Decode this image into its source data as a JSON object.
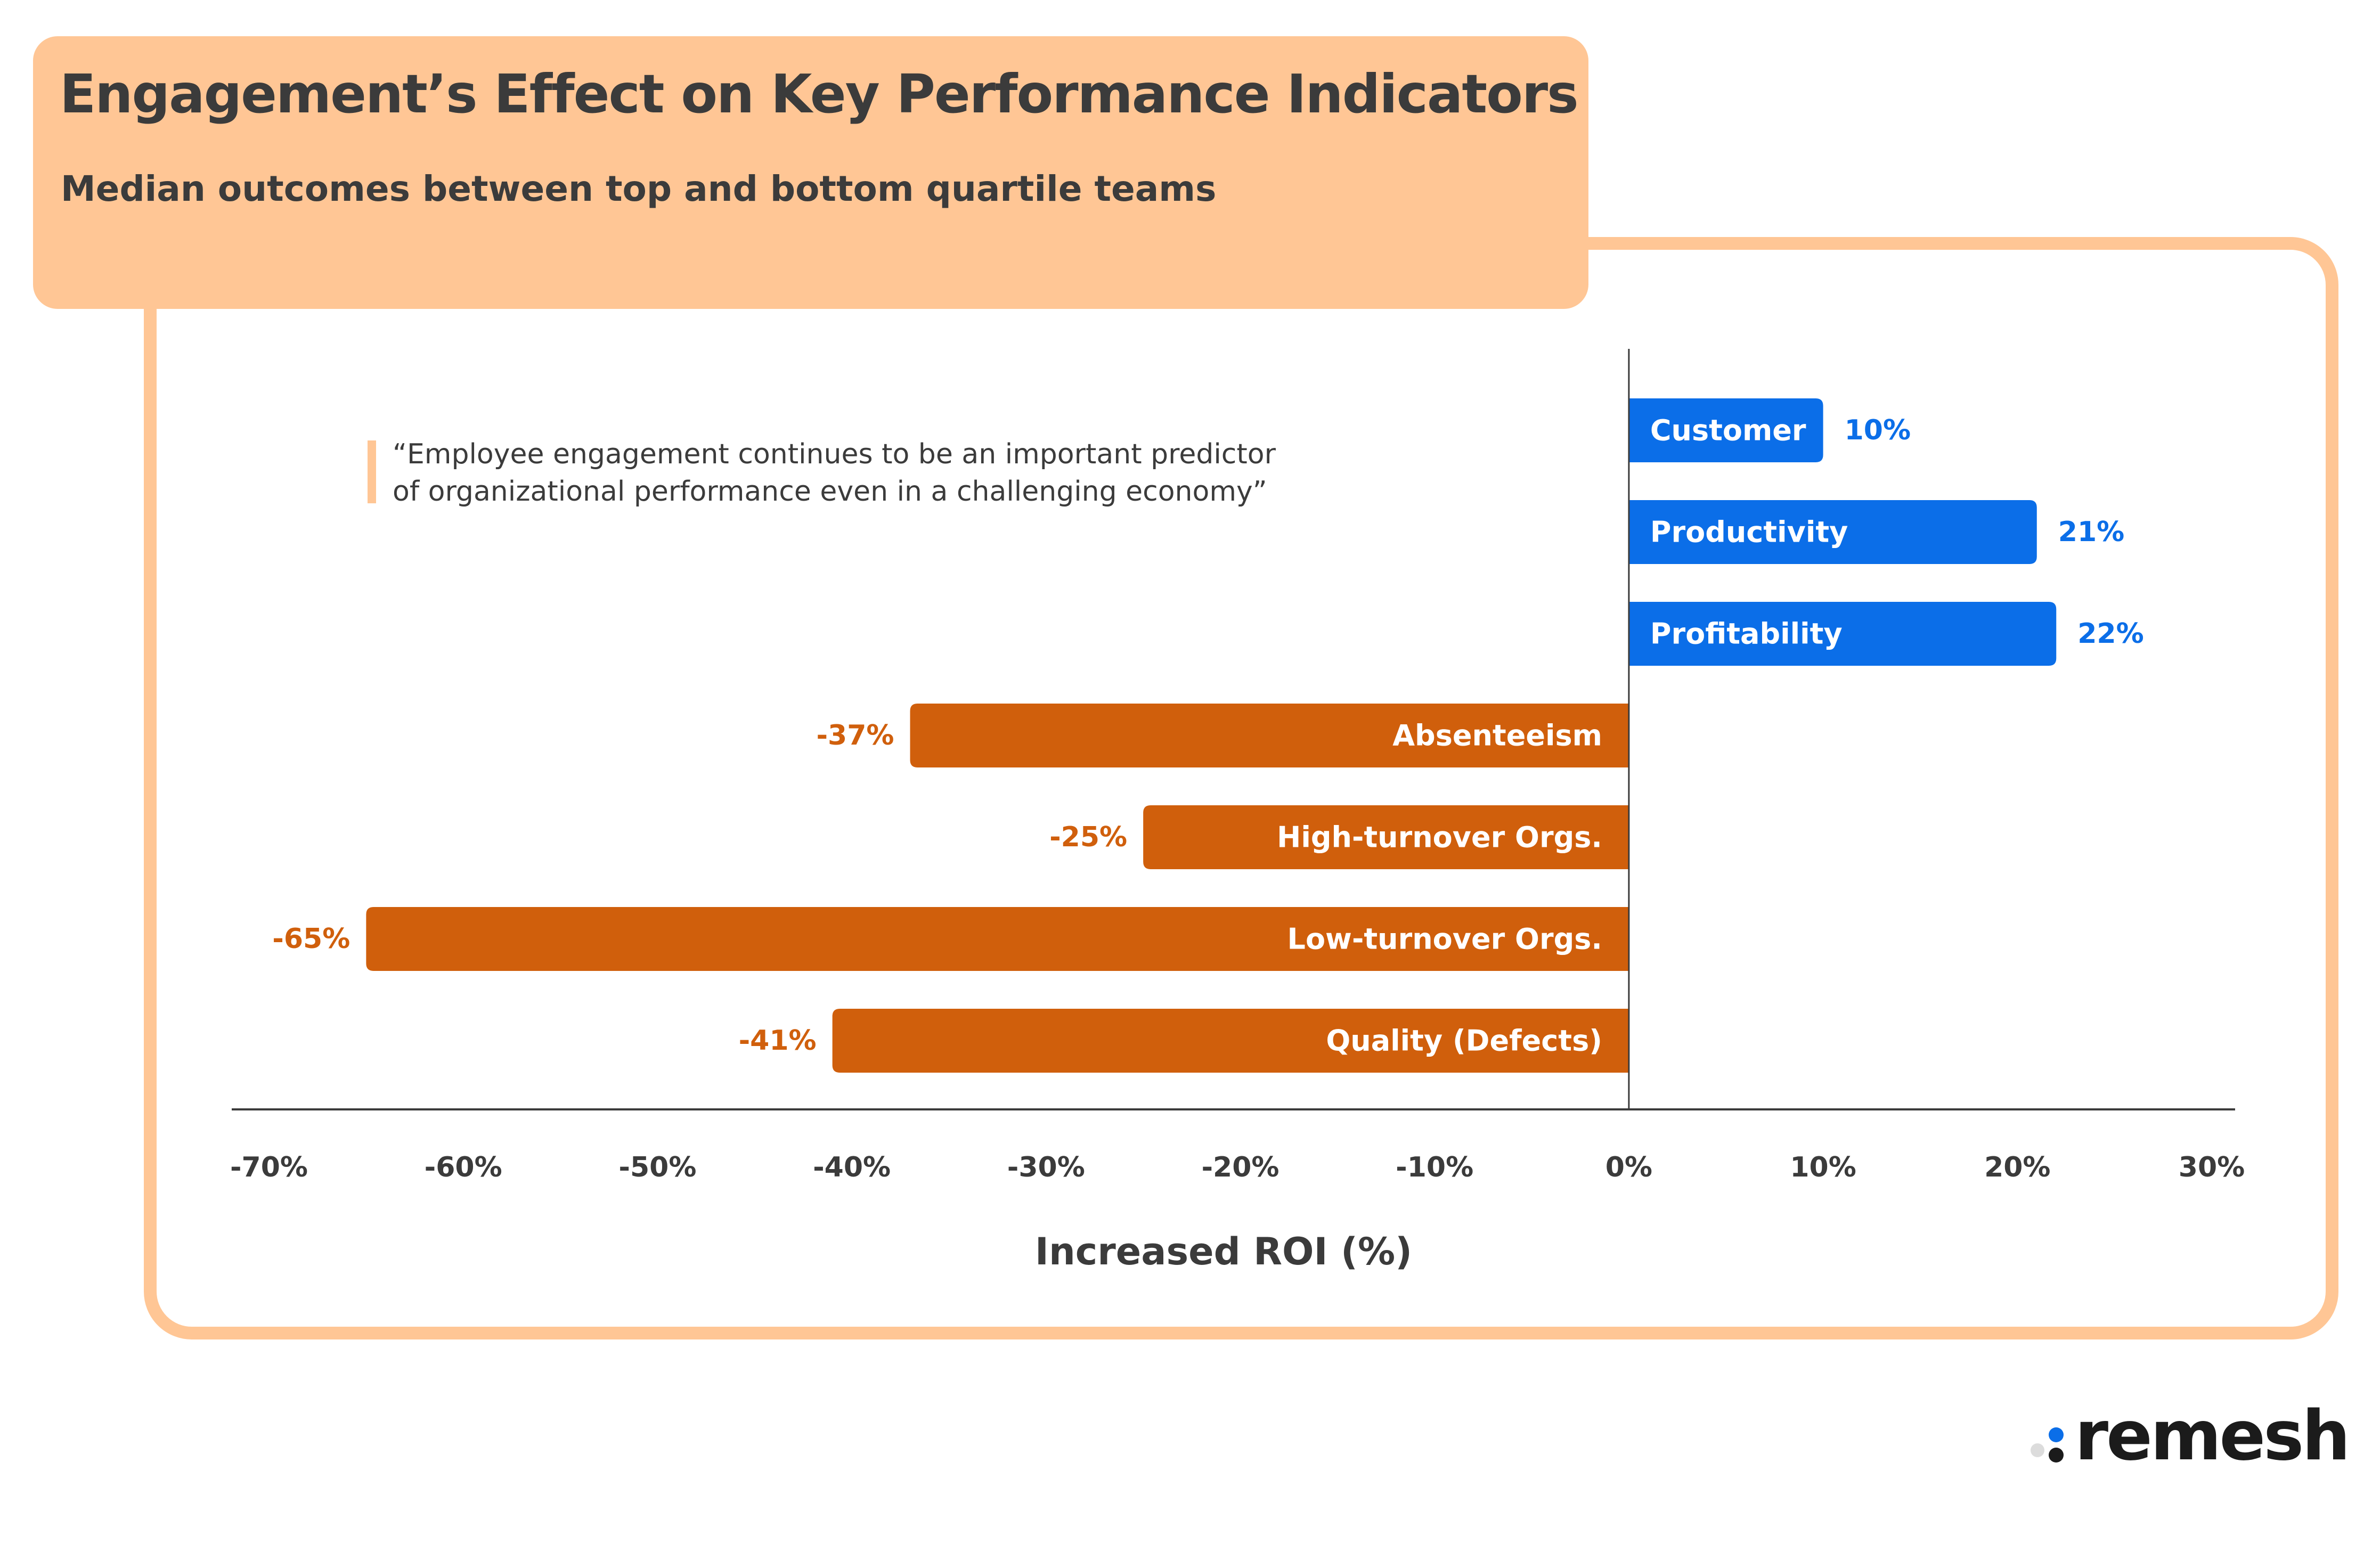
{
  "header": {
    "title": "Engagement’s Effect on Key Performance Indicators",
    "subtitle": "Median outcomes between top and bottom quartile teams"
  },
  "quote": {
    "line1": "“Employee engagement continues to be an important predictor",
    "line2": "of organizational performance even in a challenging economy”"
  },
  "brand": {
    "name": "remesh",
    "dot_colors": [
      "#dcdcdc",
      "#0b6ee8",
      "#1b1b1b"
    ]
  },
  "colors": {
    "positive": "#0b6ee8",
    "negative": "#d05f0c",
    "frame": "#ffc695",
    "text": "#3b3b3b"
  },
  "chart_data": {
    "type": "bar",
    "orientation": "horizontal",
    "title": "Engagement’s Effect on Key Performance Indicators",
    "subtitle": "Median outcomes between top and bottom quartile teams",
    "xlabel": "Increased ROI (%)",
    "ylabel": "",
    "xlim": [
      -70,
      30
    ],
    "xticks": [
      -70,
      -60,
      -50,
      -40,
      -30,
      -20,
      -10,
      0,
      10,
      20,
      30
    ],
    "tick_labels": [
      "-70%",
      "-60%",
      "-50%",
      "-40%",
      "-30%",
      "-20%",
      "-10%",
      "0%",
      "10%",
      "20%",
      "30%"
    ],
    "grid": false,
    "categories": [
      "Customer",
      "Productivity",
      "Profitability",
      "Absenteeism",
      "High-turnover Orgs.",
      "Low-turnover Orgs.",
      "Quality (Defects)"
    ],
    "values": [
      10,
      21,
      22,
      -37,
      -25,
      -65,
      -41
    ],
    "value_labels": [
      "10%",
      "21%",
      "22%",
      "-37%",
      "-25%",
      "-65%",
      "-41%"
    ]
  }
}
